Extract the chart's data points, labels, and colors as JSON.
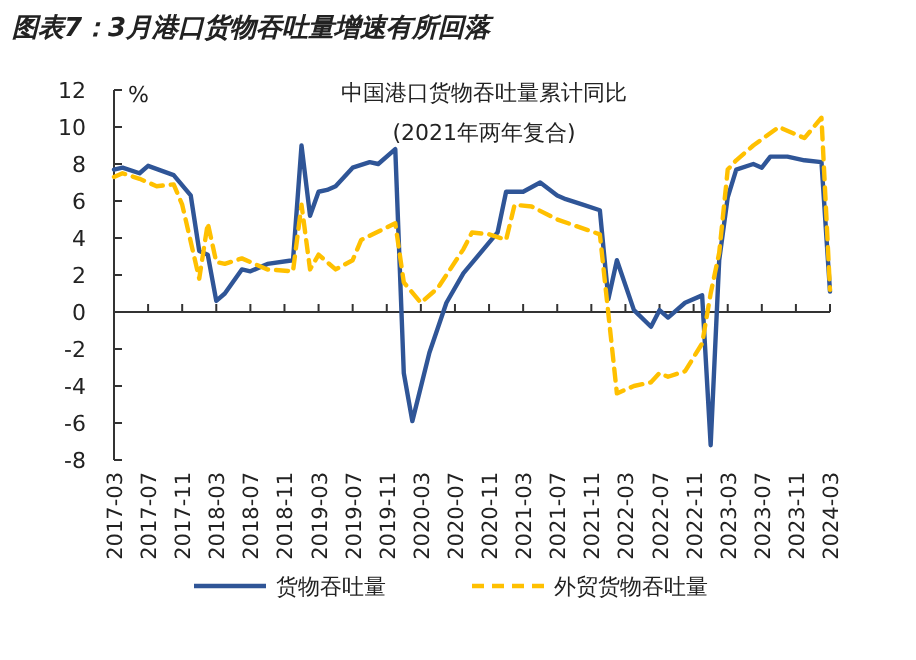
{
  "chart_data": {
    "type": "line",
    "title": "图表7：3月港口货物吞吐量增速有所回落",
    "subtitle": "中国港口货物吞吐量累计同比",
    "annotations": [
      "(2021年两年复合)"
    ],
    "ylabel": "%",
    "xlim": [
      "2017-03",
      "2024-03"
    ],
    "xticks": [
      "2017-03",
      "2017-07",
      "2017-11",
      "2018-03",
      "2018-07",
      "2018-11",
      "2019-03",
      "2019-07",
      "2019-11",
      "2020-03",
      "2020-07",
      "2020-11",
      "2021-03",
      "2021-07",
      "2021-11",
      "2022-03",
      "2022-07",
      "2022-11",
      "2023-03",
      "2023-07",
      "2023-11",
      "2024-03"
    ],
    "ylim": [
      -8,
      12
    ],
    "yticks": [
      -8,
      -6,
      -4,
      -2,
      0,
      2,
      4,
      6,
      8,
      10,
      12
    ],
    "legend": "bottom",
    "marker": "none",
    "series": [
      {
        "name": "货物吞吐量",
        "color": "#2f5597",
        "line_style": "solid",
        "x": [
          "2017-03",
          "2017-04",
          "2017-06",
          "2017-07",
          "2017-10",
          "2017-12",
          "2018-01",
          "2018-02",
          "2018-03",
          "2018-04",
          "2018-06",
          "2018-07",
          "2018-09",
          "2018-12",
          "2019-01",
          "2019-02",
          "2019-03",
          "2019-04",
          "2019-05",
          "2019-07",
          "2019-09",
          "2019-10",
          "2019-12",
          "2020-01",
          "2020-02",
          "2020-04",
          "2020-06",
          "2020-08",
          "2020-12",
          "2021-01",
          "2021-03",
          "2021-05",
          "2021-07",
          "2021-08",
          "2021-10",
          "2021-12",
          "2022-01",
          "2022-02",
          "2022-04",
          "2022-06",
          "2022-07",
          "2022-08",
          "2022-10",
          "2022-12",
          "2023-01",
          "2023-02",
          "2023-03",
          "2023-04",
          "2023-06",
          "2023-07",
          "2023-08",
          "2023-10",
          "2023-12",
          "2024-02",
          "2024-03"
        ],
        "values": [
          7.7,
          7.8,
          7.5,
          7.9,
          7.4,
          6.3,
          3.3,
          3.1,
          0.6,
          1.0,
          2.3,
          2.2,
          2.6,
          2.8,
          9.0,
          5.2,
          6.5,
          6.6,
          6.8,
          7.8,
          8.1,
          8.0,
          8.8,
          -3.3,
          -5.9,
          -2.2,
          0.5,
          2.1,
          4.3,
          6.5,
          6.5,
          7.0,
          6.3,
          6.1,
          5.8,
          5.5,
          0.7,
          2.8,
          0.1,
          -0.8,
          0.1,
          -0.3,
          0.5,
          0.9,
          -7.2,
          2.8,
          6.2,
          7.7,
          8.0,
          7.8,
          8.4,
          8.4,
          8.2,
          8.1,
          1.1
        ]
      },
      {
        "name": "外贸货物吞吐量",
        "color": "#ffc000",
        "line_style": "dashed",
        "x": [
          "2017-03",
          "2017-04",
          "2017-06",
          "2017-08",
          "2017-10",
          "2017-11",
          "2018-01",
          "2018-02",
          "2018-03",
          "2018-04",
          "2018-06",
          "2018-09",
          "2018-12",
          "2019-01",
          "2019-02",
          "2019-03",
          "2019-05",
          "2019-07",
          "2019-08",
          "2019-12",
          "2020-01",
          "2020-03",
          "2020-05",
          "2020-08",
          "2020-09",
          "2020-11",
          "2021-01",
          "2021-02",
          "2021-04",
          "2021-07",
          "2021-12",
          "2022-02",
          "2022-04",
          "2022-06",
          "2022-07",
          "2022-08",
          "2022-10",
          "2022-12",
          "2023-01",
          "2023-02",
          "2023-03",
          "2023-04",
          "2023-06",
          "2023-09",
          "2023-12",
          "2024-02",
          "2024-03"
        ],
        "values": [
          7.3,
          7.5,
          7.2,
          6.8,
          6.9,
          5.8,
          1.8,
          4.8,
          2.7,
          2.6,
          2.9,
          2.3,
          2.2,
          5.8,
          2.3,
          3.1,
          2.3,
          2.8,
          3.9,
          4.8,
          1.6,
          0.5,
          1.3,
          3.4,
          4.3,
          4.2,
          3.9,
          5.8,
          5.7,
          5.0,
          4.2,
          -4.4,
          -4.0,
          -3.8,
          -3.3,
          -3.5,
          -3.2,
          -1.7,
          1.0,
          3.2,
          7.7,
          8.2,
          9.0,
          10.0,
          9.4,
          10.5,
          1.2
        ]
      }
    ]
  }
}
